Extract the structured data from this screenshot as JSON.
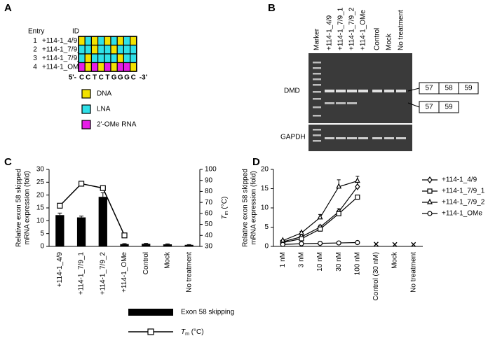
{
  "panel_a": {
    "label": "A",
    "headers": [
      "Entry",
      "ID"
    ],
    "entries": [
      {
        "entry": "1",
        "id": "+114-1_4/9",
        "chemistry": [
          "DNA",
          "LNA",
          "DNA",
          "LNA",
          "DNA",
          "LNA",
          "DNA",
          "LNA",
          "DNA"
        ]
      },
      {
        "entry": "2",
        "id": "+114-1_7/9_1",
        "chemistry": [
          "LNA",
          "LNA",
          "DNA",
          "LNA",
          "LNA",
          "DNA",
          "LNA",
          "LNA",
          "LNA"
        ]
      },
      {
        "entry": "3",
        "id": "+114-1_7/9_2",
        "chemistry": [
          "LNA",
          "DNA",
          "LNA",
          "LNA",
          "LNA",
          "LNA",
          "DNA",
          "LNA",
          "LNA"
        ]
      },
      {
        "entry": "4",
        "id": "+114-1_OMe",
        "chemistry": [
          "2'-OMe RNA",
          "DNA",
          "2'-OMe RNA",
          "DNA",
          "2'-OMe RNA",
          "DNA",
          "2'-OMe RNA",
          "2'-OMe RNA",
          "DNA"
        ]
      }
    ],
    "five_prime": "5'-",
    "sequence": [
      "C",
      "C",
      "T",
      "C",
      "T",
      "G",
      "G",
      "G",
      "C"
    ],
    "three_prime": "-3'",
    "legend": [
      {
        "name": "DNA",
        "color": "#f2e200"
      },
      {
        "name": "LNA",
        "color": "#2fe0e8"
      },
      {
        "name": "2'-OMe RNA",
        "color": "#e61ce6"
      }
    ]
  },
  "panel_b": {
    "label": "B",
    "lanes": [
      "Marker",
      "+114-1_4/9",
      "+114-1_7/9_1",
      "+114-1_7/9_2",
      "+114-1_OMe",
      "Control",
      "Mock",
      "No treatment"
    ],
    "rows": [
      "DMD",
      "GAPDH"
    ],
    "full_exons": [
      "57",
      "58",
      "59"
    ],
    "skipped_exons": [
      "57",
      "59"
    ]
  },
  "chart_data": [
    {
      "label": "C",
      "type": "bar",
      "categories": [
        "+114-1_4/9",
        "+114-1_7/9_1",
        "+114-1_7/9_2",
        "+114-1_OMe",
        "Control",
        "Mock",
        "No treatment"
      ],
      "ylabel": [
        "Relative exon 58 skipped",
        "mRNA expression (fold)"
      ],
      "y2label": {
        "italic": "T",
        "sub": "m",
        "rest": " (°C)"
      },
      "ylim": [
        0,
        30
      ],
      "yticks": [
        0,
        5,
        10,
        15,
        20,
        25,
        30
      ],
      "y2lim": [
        30,
        100
      ],
      "y2ticks": [
        30,
        40,
        50,
        60,
        70,
        80,
        90,
        100
      ],
      "series": [
        {
          "name": "Exon 58 skipping",
          "color": "#000000",
          "values": [
            12.2,
            11.3,
            19.3,
            0.9,
            1.0,
            0.8,
            0.6
          ],
          "errors": [
            0.8,
            0.5,
            1.6,
            0.2,
            0.2,
            0.2,
            0.1
          ]
        },
        {
          "name": {
            "italic": "T",
            "sub": "m",
            "rest": " (°C)"
          },
          "color": "#000000",
          "axis": "y2",
          "values": [
            67,
            87,
            83,
            40,
            null,
            null,
            null
          ],
          "errors": [
            1.0,
            1.5,
            2.0,
            1.0,
            null,
            null,
            null
          ]
        }
      ]
    },
    {
      "label": "D",
      "type": "line",
      "categories": [
        "1 nM",
        "3 nM",
        "10 nM",
        "30 nM",
        "100 nM",
        "Control (30 nM)",
        "Mock",
        "No treatment"
      ],
      "ylabel": [
        "Relative exon 58 skipped",
        "mRNA expression (fold)"
      ],
      "ylim": [
        0,
        20
      ],
      "yticks": [
        0,
        5,
        10,
        15,
        20
      ],
      "series": [
        {
          "name": "+114-1_4/9",
          "marker": "diamond",
          "color": "#000000",
          "values": [
            1.2,
            2.5,
            5.0,
            9.0,
            15.5,
            null,
            null,
            null
          ],
          "errors": [
            0.2,
            0.3,
            0.5,
            0.8,
            1.2,
            null,
            null,
            null
          ]
        },
        {
          "name": "+114-1_7/9_1",
          "marker": "square",
          "color": "#000000",
          "values": [
            1.0,
            2.0,
            4.5,
            8.5,
            12.8,
            null,
            null,
            null
          ],
          "errors": [
            0.1,
            0.2,
            0.4,
            0.6,
            0.5,
            null,
            null,
            null
          ]
        },
        {
          "name": "+114-1_7/9_2",
          "marker": "triangle",
          "color": "#000000",
          "values": [
            1.5,
            3.5,
            7.5,
            15.5,
            17.0,
            null,
            null,
            null
          ],
          "errors": [
            0.2,
            0.4,
            0.8,
            1.8,
            1.2,
            null,
            null,
            null
          ]
        },
        {
          "name": "+114-1_OMe",
          "marker": "circle",
          "color": "#000000",
          "values": [
            0.5,
            0.7,
            0.8,
            0.9,
            1.0,
            null,
            null,
            null
          ],
          "errors": [
            0.1,
            0.1,
            0.1,
            0.1,
            0.1,
            null,
            null,
            null
          ]
        }
      ],
      "control_values": [
        null,
        null,
        null,
        null,
        null,
        0.6,
        0.5,
        0.5
      ],
      "control_marker": "x"
    }
  ]
}
